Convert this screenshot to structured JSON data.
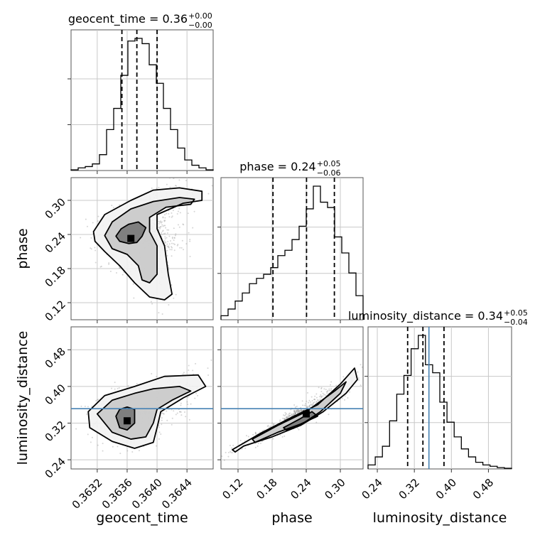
{
  "chart_data": {
    "type": "corner",
    "parameters": [
      {
        "name": "geocent_time",
        "title_label": "geocent_time = 0.36",
        "median_text": "0.36",
        "plus_text": "+0.00",
        "minus_text": "−0.00",
        "axis_label": "geocent_time",
        "range": [
          0.36285,
          0.36475
        ],
        "ticks": [
          0.3632,
          0.3636,
          0.364,
          0.3644
        ],
        "tick_labels": [
          "0.3632",
          "0.3636",
          "0.3640",
          "0.3644"
        ],
        "quantiles": [
          0.36353,
          0.36373,
          0.364
        ],
        "truth": null,
        "histogram": [
          0.005,
          0.02,
          0.03,
          0.05,
          0.12,
          0.31,
          0.47,
          0.72,
          0.98,
          1.0,
          0.96,
          0.8,
          0.66,
          0.47,
          0.31,
          0.17,
          0.08,
          0.04,
          0.02,
          0.005
        ]
      },
      {
        "name": "phase",
        "title_label": "phase = 0.24",
        "median_text": "0.24",
        "plus_text": "+0.05",
        "minus_text": "−0.06",
        "axis_label": "phase",
        "range": [
          0.09,
          0.34
        ],
        "ticks": [
          0.12,
          0.18,
          0.24,
          0.3
        ],
        "tick_labels": [
          "0.12",
          "0.18",
          "0.24",
          "0.30"
        ],
        "quantiles": [
          0.1815,
          0.2405,
          0.2895
        ],
        "truth": null,
        "histogram": [
          0.03,
          0.08,
          0.14,
          0.2,
          0.27,
          0.31,
          0.34,
          0.39,
          0.48,
          0.52,
          0.6,
          0.7,
          0.83,
          1.0,
          0.88,
          0.84,
          0.62,
          0.5,
          0.35,
          0.18
        ]
      },
      {
        "name": "luminosity_distance",
        "title_label": "luminosity_distance = 0.34",
        "median_text": "0.34",
        "plus_text": "+0.05",
        "minus_text": "−0.04",
        "axis_label": "luminosity_distance",
        "range": [
          0.22,
          0.53
        ],
        "ticks": [
          0.24,
          0.32,
          0.4,
          0.48
        ],
        "tick_labels": [
          "0.24",
          "0.32",
          "0.40",
          "0.48"
        ],
        "quantiles": [
          0.3055,
          0.3385,
          0.384
        ],
        "truth": 0.3515,
        "histogram": [
          0.03,
          0.09,
          0.17,
          0.36,
          0.56,
          0.7,
          0.9,
          1.0,
          0.78,
          0.72,
          0.5,
          0.35,
          0.24,
          0.15,
          0.09,
          0.05,
          0.03,
          0.02,
          0.01,
          0.005
        ]
      }
    ],
    "pairs": [
      {
        "x_param": "geocent_time",
        "y_param": "phase",
        "mode": [
          0.36365,
          0.233
        ],
        "contours": [
          [
            [
              0.36345,
              0.237
            ],
            [
              0.36352,
              0.25
            ],
            [
              0.36362,
              0.258
            ],
            [
              0.36375,
              0.262
            ],
            [
              0.36385,
              0.252
            ],
            [
              0.3638,
              0.237
            ],
            [
              0.36373,
              0.226
            ],
            [
              0.36362,
              0.224
            ],
            [
              0.3635,
              0.228
            ]
          ],
          [
            [
              0.3633,
              0.238
            ],
            [
              0.3634,
              0.262
            ],
            [
              0.36365,
              0.285
            ],
            [
              0.36395,
              0.298
            ],
            [
              0.3643,
              0.305
            ],
            [
              0.3645,
              0.302
            ],
            [
              0.36445,
              0.293
            ],
            [
              0.36412,
              0.288
            ],
            [
              0.3639,
              0.27
            ],
            [
              0.3639,
              0.245
            ],
            [
              0.364,
              0.22
            ],
            [
              0.364,
              0.17
            ],
            [
              0.3639,
              0.155
            ],
            [
              0.3638,
              0.16
            ],
            [
              0.36375,
              0.185
            ],
            [
              0.3636,
              0.205
            ],
            [
              0.3634,
              0.215
            ]
          ],
          [
            [
              0.36315,
              0.245
            ],
            [
              0.3633,
              0.275
            ],
            [
              0.36365,
              0.3
            ],
            [
              0.36395,
              0.318
            ],
            [
              0.3643,
              0.322
            ],
            [
              0.3646,
              0.316
            ],
            [
              0.3646,
              0.3
            ],
            [
              0.36435,
              0.295
            ],
            [
              0.364,
              0.275
            ],
            [
              0.364,
              0.25
            ],
            [
              0.3641,
              0.22
            ],
            [
              0.36415,
              0.17
            ],
            [
              0.3642,
              0.135
            ],
            [
              0.3641,
              0.125
            ],
            [
              0.3639,
              0.13
            ],
            [
              0.3637,
              0.155
            ],
            [
              0.3635,
              0.185
            ],
            [
              0.3633,
              0.21
            ],
            [
              0.36317,
              0.228
            ]
          ]
        ]
      },
      {
        "x_param": "geocent_time",
        "y_param": "luminosity_distance",
        "mode": [
          0.3636,
          0.325
        ],
        "contours": [
          [
            [
              0.36345,
              0.335
            ],
            [
              0.3635,
              0.35
            ],
            [
              0.3636,
              0.355
            ],
            [
              0.3637,
              0.35
            ],
            [
              0.3637,
              0.32
            ],
            [
              0.3636,
              0.305
            ],
            [
              0.3635,
              0.31
            ]
          ],
          [
            [
              0.3632,
              0.34
            ],
            [
              0.3634,
              0.37
            ],
            [
              0.3637,
              0.385
            ],
            [
              0.36395,
              0.395
            ],
            [
              0.3643,
              0.4
            ],
            [
              0.36445,
              0.39
            ],
            [
              0.3642,
              0.37
            ],
            [
              0.364,
              0.35
            ],
            [
              0.36395,
              0.32
            ],
            [
              0.36385,
              0.29
            ],
            [
              0.36365,
              0.285
            ],
            [
              0.3634,
              0.3
            ]
          ],
          [
            [
              0.36308,
              0.345
            ],
            [
              0.3633,
              0.38
            ],
            [
              0.3637,
              0.4
            ],
            [
              0.3641,
              0.422
            ],
            [
              0.36455,
              0.425
            ],
            [
              0.36465,
              0.4
            ],
            [
              0.36435,
              0.375
            ],
            [
              0.36405,
              0.345
            ],
            [
              0.364,
              0.31
            ],
            [
              0.36395,
              0.278
            ],
            [
              0.3637,
              0.265
            ],
            [
              0.3634,
              0.28
            ],
            [
              0.3631,
              0.31
            ]
          ]
        ]
      },
      {
        "x_param": "phase",
        "y_param": "luminosity_distance",
        "mode": [
          0.24,
          0.34
        ],
        "contours": [
          [
            [
              0.2,
              0.31
            ],
            [
              0.23,
              0.33
            ],
            [
              0.25,
              0.345
            ],
            [
              0.26,
              0.335
            ],
            [
              0.23,
              0.318
            ],
            [
              0.205,
              0.305
            ]
          ],
          [
            [
              0.145,
              0.285
            ],
            [
              0.19,
              0.315
            ],
            [
              0.24,
              0.345
            ],
            [
              0.29,
              0.39
            ],
            [
              0.31,
              0.41
            ],
            [
              0.3,
              0.385
            ],
            [
              0.265,
              0.345
            ],
            [
              0.235,
              0.32
            ],
            [
              0.19,
              0.3
            ],
            [
              0.15,
              0.278
            ]
          ],
          [
            [
              0.11,
              0.262
            ],
            [
              0.16,
              0.298
            ],
            [
              0.21,
              0.33
            ],
            [
              0.26,
              0.36
            ],
            [
              0.3,
              0.405
            ],
            [
              0.325,
              0.44
            ],
            [
              0.33,
              0.415
            ],
            [
              0.31,
              0.385
            ],
            [
              0.27,
              0.345
            ],
            [
              0.23,
              0.315
            ],
            [
              0.18,
              0.29
            ],
            [
              0.13,
              0.27
            ],
            [
              0.115,
              0.257
            ]
          ]
        ]
      }
    ]
  }
}
